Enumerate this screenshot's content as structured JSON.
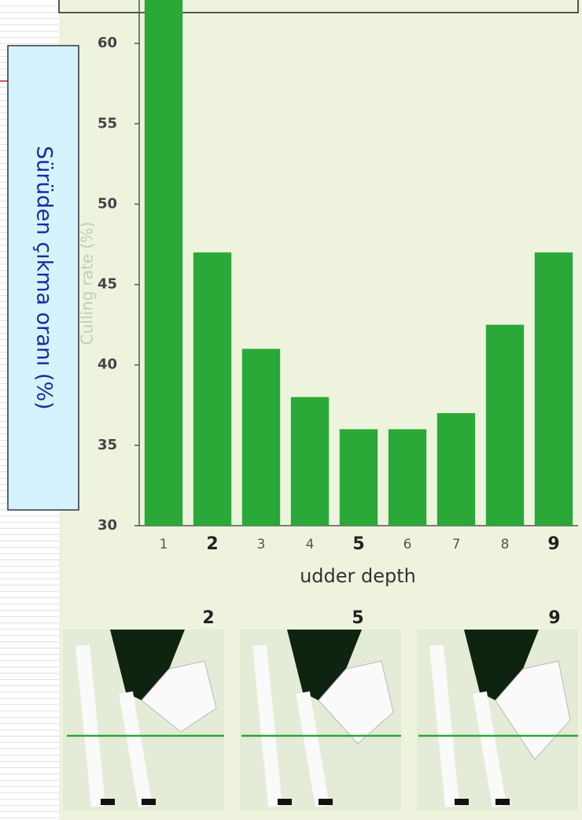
{
  "chart_data": {
    "type": "bar",
    "y_label": "Sürüden çıkma oranı (%)",
    "y_label_original": "Culling rate (%)",
    "x_label": "udder depth",
    "categories": [
      "1",
      "2",
      "3",
      "4",
      "5",
      "6",
      "7",
      "8",
      "9"
    ],
    "bold": [
      false,
      true,
      false,
      false,
      true,
      false,
      false,
      false,
      true
    ],
    "values": [
      63,
      47,
      41,
      38,
      36,
      36,
      37,
      42.5,
      47
    ],
    "color": "#2aa838",
    "ylim": [
      30,
      62.7
    ],
    "yticks": [
      30,
      35,
      40,
      45,
      50,
      55,
      60
    ],
    "grid": false,
    "panel_labels": [
      "2",
      "5",
      "9"
    ]
  }
}
